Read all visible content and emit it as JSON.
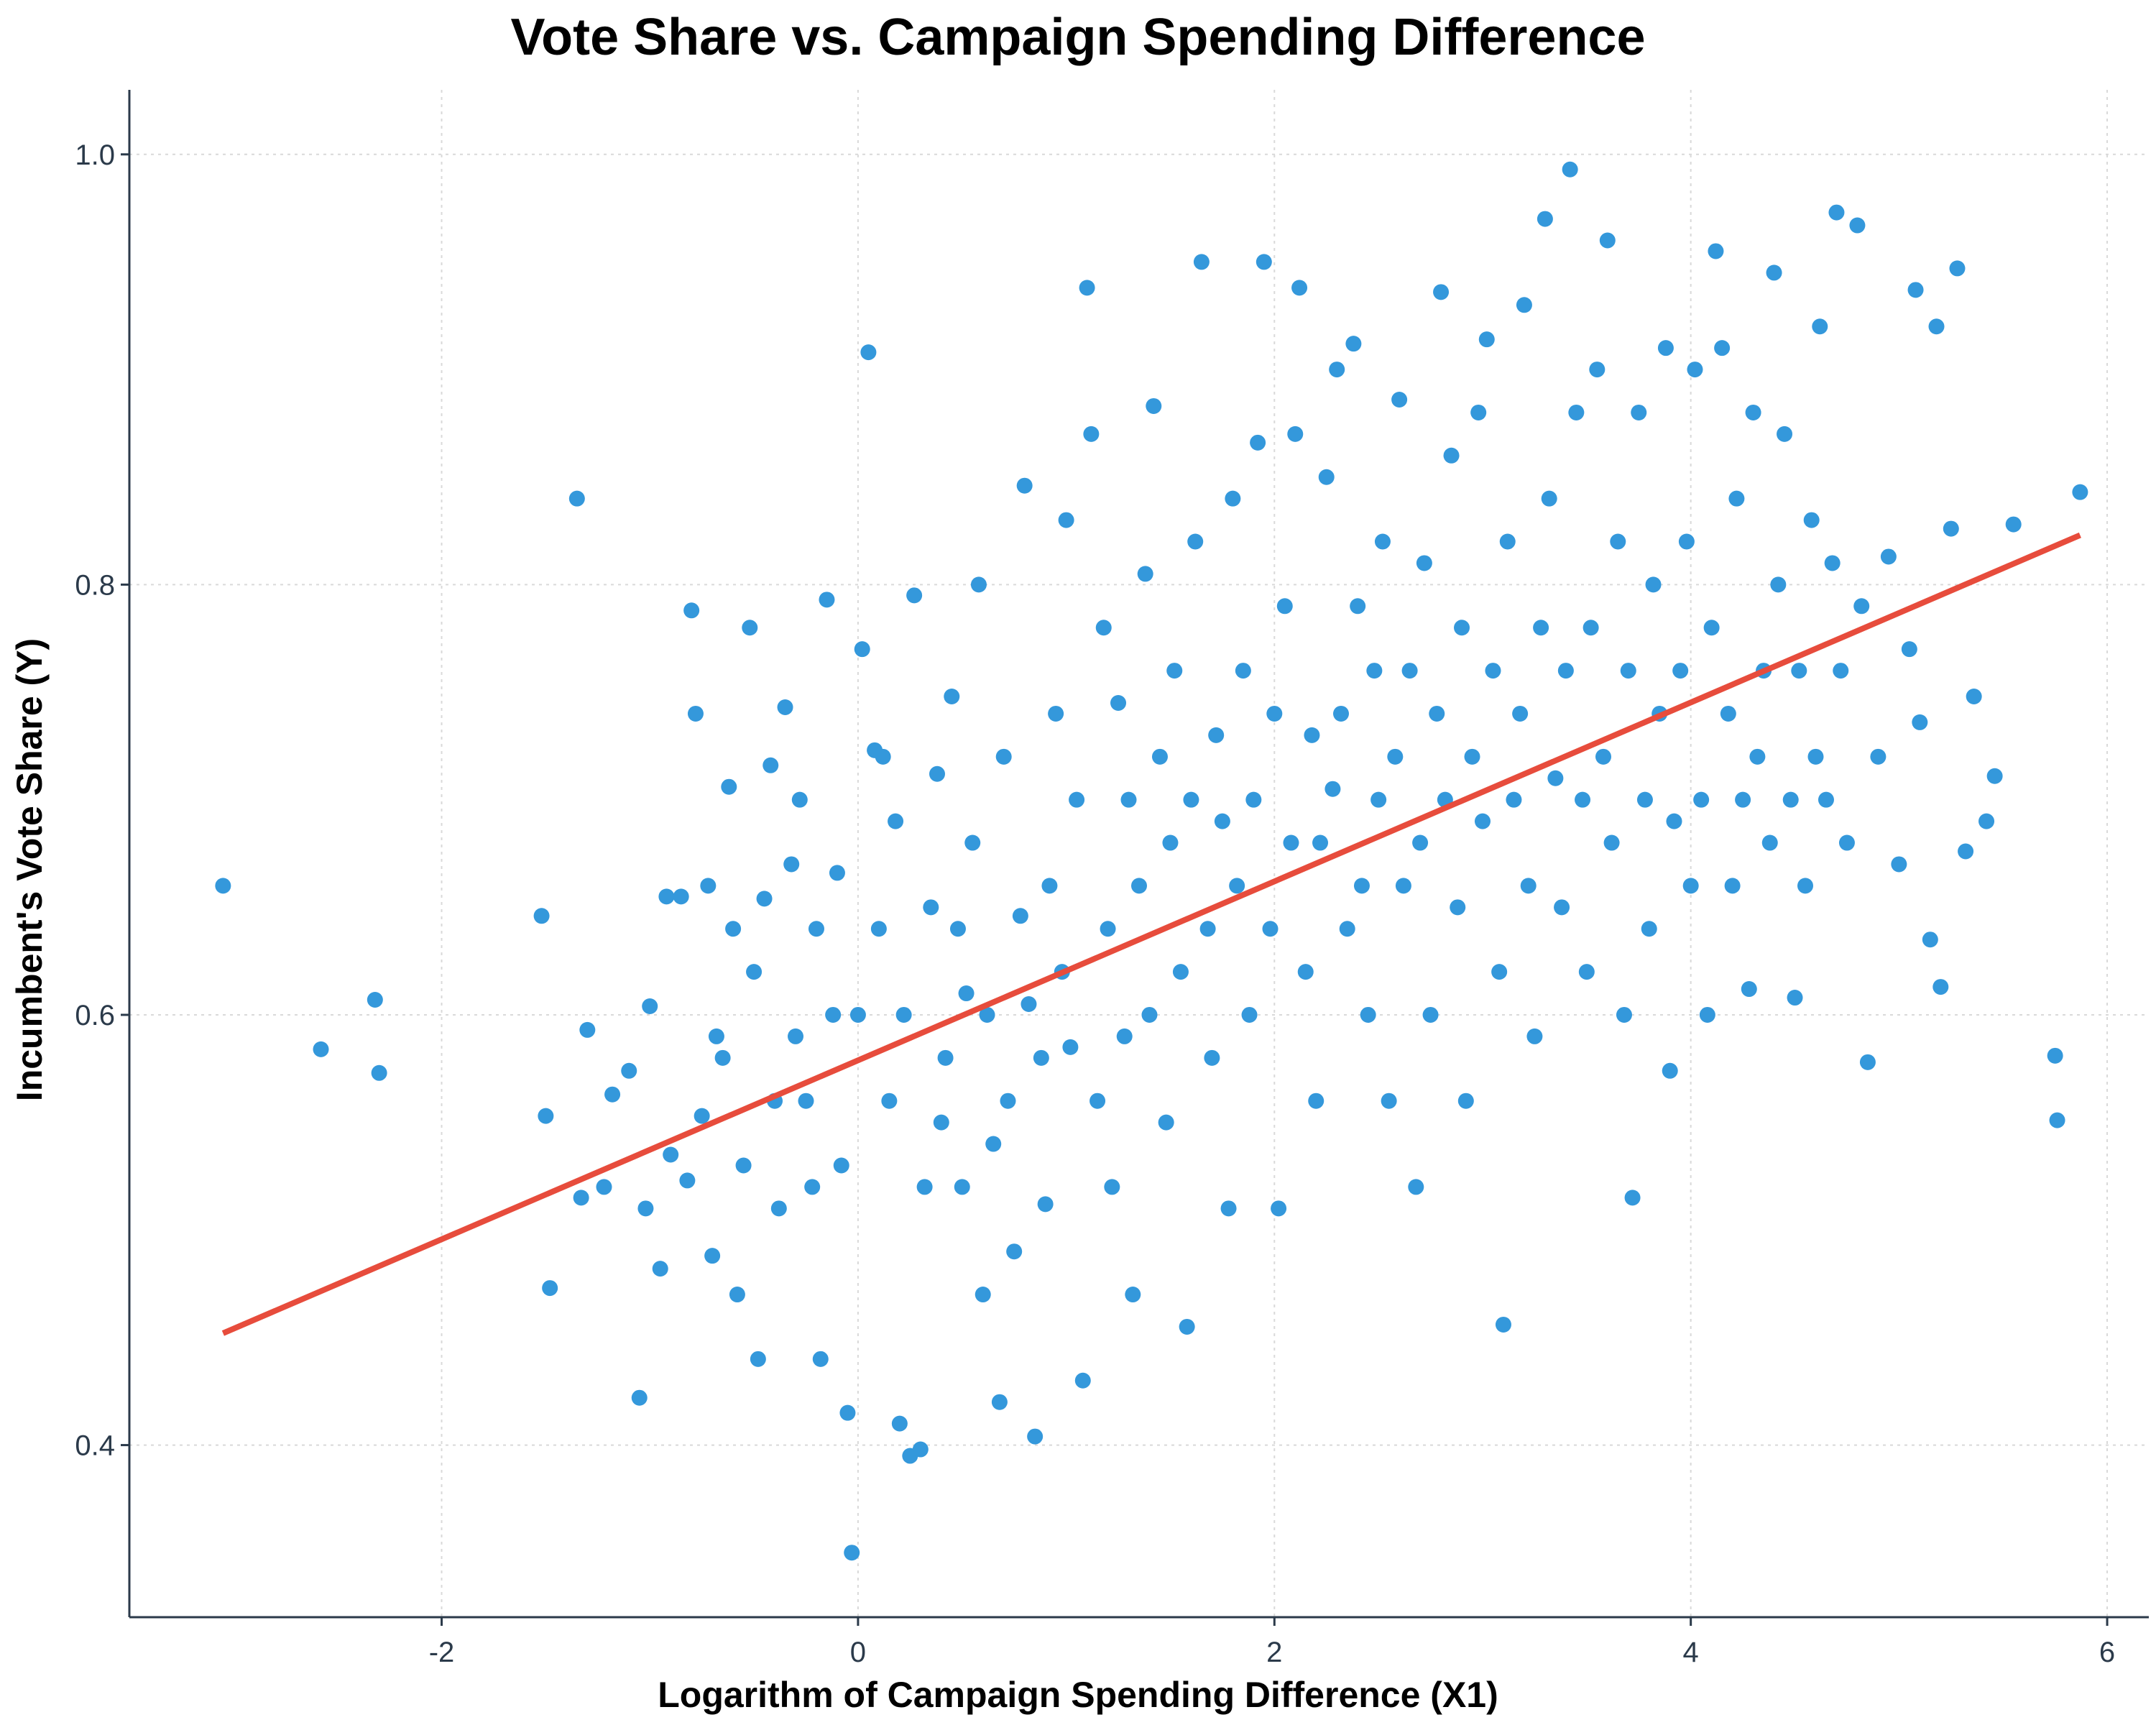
{
  "chart_data": {
    "type": "scatter",
    "title": "Vote Share vs. Campaign Spending Difference",
    "xlabel": "Logarithm of Campaign Spending Difference (X1)",
    "ylabel": "Incumbent's Vote Share (Y)",
    "xlim": [
      -3.5,
      6.2
    ],
    "ylim": [
      0.32,
      1.03
    ],
    "x_ticks": [
      -2,
      0,
      2,
      4,
      6
    ],
    "y_ticks": [
      0.4,
      0.6,
      0.8,
      1.0
    ],
    "x_tick_labels": [
      "-2",
      "0",
      "2",
      "4",
      "6"
    ],
    "y_tick_labels": [
      "0.4",
      "0.6",
      "0.8",
      "1.0"
    ],
    "grid": true,
    "point_color": "#3498db",
    "line_color": "#e74c3c",
    "regression_line": {
      "x": [
        -3.05,
        5.87
      ],
      "y": [
        0.452,
        0.823
      ]
    },
    "series": [
      {
        "points": [
          [
            -3.05,
            0.66
          ],
          [
            -2.58,
            0.584
          ],
          [
            -2.32,
            0.607
          ],
          [
            -2.3,
            0.573
          ],
          [
            -1.52,
            0.646
          ],
          [
            -1.5,
            0.553
          ],
          [
            -1.48,
            0.473
          ],
          [
            -1.35,
            0.84
          ],
          [
            -1.33,
            0.515
          ],
          [
            -1.3,
            0.593
          ],
          [
            -1.22,
            0.52
          ],
          [
            -1.18,
            0.563
          ],
          [
            -1.1,
            0.574
          ],
          [
            -1.05,
            0.422
          ],
          [
            -1.02,
            0.51
          ],
          [
            -1.0,
            0.604
          ],
          [
            -0.95,
            0.482
          ],
          [
            -0.92,
            0.655
          ],
          [
            -0.9,
            0.535
          ],
          [
            -0.85,
            0.655
          ],
          [
            -0.82,
            0.523
          ],
          [
            -0.8,
            0.788
          ],
          [
            -0.78,
            0.74
          ],
          [
            -0.75,
            0.553
          ],
          [
            -0.72,
            0.66
          ],
          [
            -0.7,
            0.488
          ],
          [
            -0.68,
            0.59
          ],
          [
            -0.65,
            0.58
          ],
          [
            -0.62,
            0.706
          ],
          [
            -0.6,
            0.64
          ],
          [
            -0.58,
            0.47
          ],
          [
            -0.55,
            0.53
          ],
          [
            -0.52,
            0.78
          ],
          [
            -0.5,
            0.62
          ],
          [
            -0.48,
            0.44
          ],
          [
            -0.45,
            0.654
          ],
          [
            -0.42,
            0.716
          ],
          [
            -0.4,
            0.56
          ],
          [
            -0.38,
            0.51
          ],
          [
            -0.35,
            0.743
          ],
          [
            -0.32,
            0.67
          ],
          [
            -0.3,
            0.59
          ],
          [
            -0.28,
            0.7
          ],
          [
            -0.25,
            0.56
          ],
          [
            -0.22,
            0.52
          ],
          [
            -0.2,
            0.64
          ],
          [
            -0.18,
            0.44
          ],
          [
            -0.15,
            0.793
          ],
          [
            -0.12,
            0.6
          ],
          [
            -0.1,
            0.666
          ],
          [
            -0.08,
            0.53
          ],
          [
            -0.05,
            0.415
          ],
          [
            -0.03,
            0.35
          ],
          [
            0.0,
            0.6
          ],
          [
            0.02,
            0.77
          ],
          [
            0.05,
            0.908
          ],
          [
            0.08,
            0.723
          ],
          [
            0.1,
            0.64
          ],
          [
            0.12,
            0.72
          ],
          [
            0.15,
            0.56
          ],
          [
            0.18,
            0.69
          ],
          [
            0.2,
            0.41
          ],
          [
            0.22,
            0.6
          ],
          [
            0.25,
            0.395
          ],
          [
            0.27,
            0.795
          ],
          [
            0.3,
            0.398
          ],
          [
            0.32,
            0.52
          ],
          [
            0.35,
            0.65
          ],
          [
            0.38,
            0.712
          ],
          [
            0.4,
            0.55
          ],
          [
            0.42,
            0.58
          ],
          [
            0.45,
            0.748
          ],
          [
            0.48,
            0.64
          ],
          [
            0.5,
            0.52
          ],
          [
            0.52,
            0.61
          ],
          [
            0.55,
            0.68
          ],
          [
            0.58,
            0.8
          ],
          [
            0.6,
            0.47
          ],
          [
            0.62,
            0.6
          ],
          [
            0.65,
            0.54
          ],
          [
            0.68,
            0.42
          ],
          [
            0.7,
            0.72
          ],
          [
            0.72,
            0.56
          ],
          [
            0.75,
            0.49
          ],
          [
            0.78,
            0.646
          ],
          [
            0.8,
            0.846
          ],
          [
            0.82,
            0.605
          ],
          [
            0.85,
            0.404
          ],
          [
            0.88,
            0.58
          ],
          [
            0.9,
            0.512
          ],
          [
            0.92,
            0.66
          ],
          [
            0.95,
            0.74
          ],
          [
            0.98,
            0.62
          ],
          [
            1.0,
            0.83
          ],
          [
            1.02,
            0.585
          ],
          [
            1.05,
            0.7
          ],
          [
            1.08,
            0.43
          ],
          [
            1.1,
            0.938
          ],
          [
            1.12,
            0.87
          ],
          [
            1.15,
            0.56
          ],
          [
            1.18,
            0.78
          ],
          [
            1.2,
            0.64
          ],
          [
            1.22,
            0.52
          ],
          [
            1.25,
            0.745
          ],
          [
            1.28,
            0.59
          ],
          [
            1.3,
            0.7
          ],
          [
            1.32,
            0.47
          ],
          [
            1.35,
            0.66
          ],
          [
            1.38,
            0.805
          ],
          [
            1.4,
            0.6
          ],
          [
            1.42,
            0.883
          ],
          [
            1.45,
            0.72
          ],
          [
            1.48,
            0.55
          ],
          [
            1.5,
            0.68
          ],
          [
            1.52,
            0.76
          ],
          [
            1.55,
            0.62
          ],
          [
            1.58,
            0.455
          ],
          [
            1.6,
            0.7
          ],
          [
            1.62,
            0.82
          ],
          [
            1.65,
            0.95
          ],
          [
            1.68,
            0.64
          ],
          [
            1.7,
            0.58
          ],
          [
            1.72,
            0.73
          ],
          [
            1.75,
            0.69
          ],
          [
            1.78,
            0.51
          ],
          [
            1.8,
            0.84
          ],
          [
            1.82,
            0.66
          ],
          [
            1.85,
            0.76
          ],
          [
            1.88,
            0.6
          ],
          [
            1.9,
            0.7
          ],
          [
            1.92,
            0.866
          ],
          [
            1.95,
            0.95
          ],
          [
            1.98,
            0.64
          ],
          [
            2.0,
            0.74
          ],
          [
            2.02,
            0.51
          ],
          [
            2.05,
            0.79
          ],
          [
            2.08,
            0.68
          ],
          [
            2.1,
            0.87
          ],
          [
            2.12,
            0.938
          ],
          [
            2.15,
            0.62
          ],
          [
            2.18,
            0.73
          ],
          [
            2.2,
            0.56
          ],
          [
            2.22,
            0.68
          ],
          [
            2.25,
            0.85
          ],
          [
            2.28,
            0.705
          ],
          [
            2.3,
            0.9
          ],
          [
            2.32,
            0.74
          ],
          [
            2.35,
            0.64
          ],
          [
            2.38,
            0.912
          ],
          [
            2.4,
            0.79
          ],
          [
            2.42,
            0.66
          ],
          [
            2.45,
            0.6
          ],
          [
            2.48,
            0.76
          ],
          [
            2.5,
            0.7
          ],
          [
            2.52,
            0.82
          ],
          [
            2.55,
            0.56
          ],
          [
            2.58,
            0.72
          ],
          [
            2.6,
            0.886
          ],
          [
            2.62,
            0.66
          ],
          [
            2.65,
            0.76
          ],
          [
            2.68,
            0.52
          ],
          [
            2.7,
            0.68
          ],
          [
            2.72,
            0.81
          ],
          [
            2.75,
            0.6
          ],
          [
            2.78,
            0.74
          ],
          [
            2.8,
            0.936
          ],
          [
            2.82,
            0.7
          ],
          [
            2.85,
            0.86
          ],
          [
            2.88,
            0.65
          ],
          [
            2.9,
            0.78
          ],
          [
            2.92,
            0.56
          ],
          [
            2.95,
            0.72
          ],
          [
            2.98,
            0.88
          ],
          [
            3.0,
            0.69
          ],
          [
            3.02,
            0.914
          ],
          [
            3.05,
            0.76
          ],
          [
            3.08,
            0.62
          ],
          [
            3.1,
            0.456
          ],
          [
            3.12,
            0.82
          ],
          [
            3.15,
            0.7
          ],
          [
            3.18,
            0.74
          ],
          [
            3.2,
            0.93
          ],
          [
            3.22,
            0.66
          ],
          [
            3.25,
            0.59
          ],
          [
            3.28,
            0.78
          ],
          [
            3.3,
            0.97
          ],
          [
            3.32,
            0.84
          ],
          [
            3.35,
            0.71
          ],
          [
            3.38,
            0.65
          ],
          [
            3.4,
            0.76
          ],
          [
            3.42,
            0.993
          ],
          [
            3.45,
            0.88
          ],
          [
            3.48,
            0.7
          ],
          [
            3.5,
            0.62
          ],
          [
            3.52,
            0.78
          ],
          [
            3.55,
            0.9
          ],
          [
            3.58,
            0.72
          ],
          [
            3.6,
            0.96
          ],
          [
            3.62,
            0.68
          ],
          [
            3.65,
            0.82
          ],
          [
            3.68,
            0.6
          ],
          [
            3.7,
            0.76
          ],
          [
            3.72,
            0.515
          ],
          [
            3.75,
            0.88
          ],
          [
            3.78,
            0.7
          ],
          [
            3.8,
            0.64
          ],
          [
            3.82,
            0.8
          ],
          [
            3.85,
            0.74
          ],
          [
            3.88,
            0.91
          ],
          [
            3.9,
            0.574
          ],
          [
            3.92,
            0.69
          ],
          [
            3.95,
            0.76
          ],
          [
            3.98,
            0.82
          ],
          [
            4.0,
            0.66
          ],
          [
            4.02,
            0.9
          ],
          [
            4.05,
            0.7
          ],
          [
            4.08,
            0.6
          ],
          [
            4.1,
            0.78
          ],
          [
            4.12,
            0.955
          ],
          [
            4.15,
            0.91
          ],
          [
            4.18,
            0.74
          ],
          [
            4.2,
            0.66
          ],
          [
            4.22,
            0.84
          ],
          [
            4.25,
            0.7
          ],
          [
            4.28,
            0.612
          ],
          [
            4.3,
            0.88
          ],
          [
            4.32,
            0.72
          ],
          [
            4.35,
            0.76
          ],
          [
            4.38,
            0.68
          ],
          [
            4.4,
            0.945
          ],
          [
            4.42,
            0.8
          ],
          [
            4.45,
            0.87
          ],
          [
            4.48,
            0.7
          ],
          [
            4.5,
            0.608
          ],
          [
            4.52,
            0.76
          ],
          [
            4.55,
            0.66
          ],
          [
            4.58,
            0.83
          ],
          [
            4.6,
            0.72
          ],
          [
            4.62,
            0.92
          ],
          [
            4.65,
            0.7
          ],
          [
            4.68,
            0.81
          ],
          [
            4.7,
            0.973
          ],
          [
            4.72,
            0.76
          ],
          [
            4.75,
            0.68
          ],
          [
            4.8,
            0.967
          ],
          [
            4.82,
            0.79
          ],
          [
            4.85,
            0.578
          ],
          [
            4.9,
            0.72
          ],
          [
            4.95,
            0.813
          ],
          [
            5.0,
            0.67
          ],
          [
            5.05,
            0.77
          ],
          [
            5.08,
            0.937
          ],
          [
            5.1,
            0.736
          ],
          [
            5.15,
            0.635
          ],
          [
            5.18,
            0.92
          ],
          [
            5.2,
            0.613
          ],
          [
            5.25,
            0.826
          ],
          [
            5.28,
            0.947
          ],
          [
            5.32,
            0.676
          ],
          [
            5.36,
            0.748
          ],
          [
            5.42,
            0.69
          ],
          [
            5.46,
            0.711
          ],
          [
            5.55,
            0.828
          ],
          [
            5.75,
            0.581
          ],
          [
            5.76,
            0.551
          ],
          [
            5.87,
            0.843
          ]
        ]
      }
    ]
  }
}
